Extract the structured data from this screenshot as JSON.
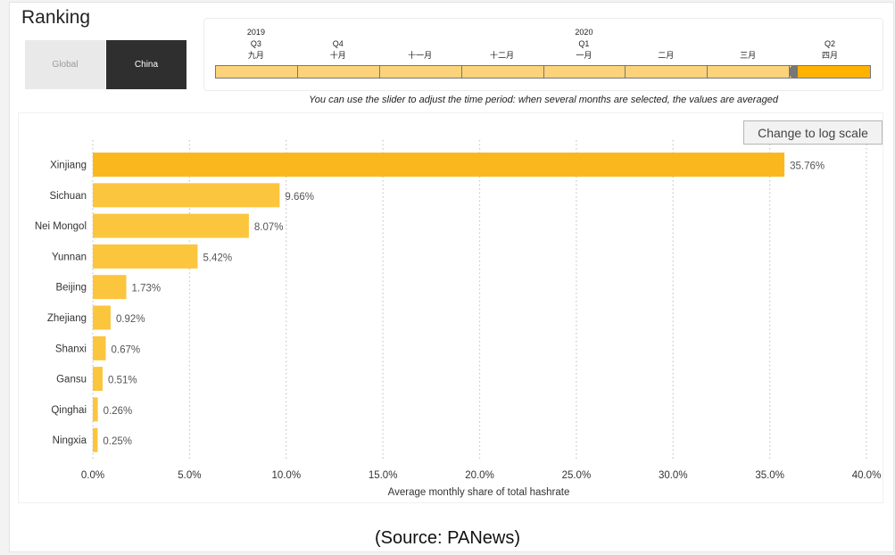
{
  "panel": {
    "title": "Ranking",
    "toggle_global": "Global",
    "toggle_china": "China"
  },
  "slider": {
    "labels": [
      {
        "year": "2019",
        "quarter": "Q3",
        "month": "九月"
      },
      {
        "year": "",
        "quarter": "Q4",
        "month": "十月"
      },
      {
        "year": "",
        "quarter": "",
        "month": "十一月"
      },
      {
        "year": "",
        "quarter": "",
        "month": "十二月"
      },
      {
        "year": "2020",
        "quarter": "Q1",
        "month": "一月"
      },
      {
        "year": "",
        "quarter": "",
        "month": "二月"
      },
      {
        "year": "",
        "quarter": "",
        "month": "三月"
      },
      {
        "year": "",
        "quarter": "Q2",
        "month": "四月"
      }
    ],
    "selected_index": 7,
    "hint": "You can use the slider to adjust the time period: when several months are selected, the values are averaged"
  },
  "log_button": "Change to log scale",
  "source": "(Source: PANews)",
  "colors": {
    "bar_top": "#fbb81e",
    "bar": "#fcc53e",
    "slider_fill": "#fcd37a",
    "slider_selected": "#ffb300"
  },
  "chart_data": {
    "type": "bar",
    "orientation": "horizontal",
    "title": "",
    "xlabel": "Average monthly share of total hashrate",
    "ylabel": "",
    "categories": [
      "Xinjiang",
      "Sichuan",
      "Nei Mongol",
      "Yunnan",
      "Beijing",
      "Zhejiang",
      "Shanxi",
      "Gansu",
      "Qinghai",
      "Ningxia"
    ],
    "values": [
      35.76,
      9.66,
      8.07,
      5.42,
      1.73,
      0.92,
      0.67,
      0.51,
      0.26,
      0.25
    ],
    "value_labels": [
      "35.76%",
      "9.66%",
      "8.07%",
      "5.42%",
      "1.73%",
      "0.92%",
      "0.67%",
      "0.51%",
      "0.26%",
      "0.25%"
    ],
    "xlim": [
      0,
      40
    ],
    "xticks": [
      0,
      5,
      10,
      15,
      20,
      25,
      30,
      35,
      40
    ],
    "xtick_labels": [
      "0.0%",
      "5.0%",
      "10.0%",
      "15.0%",
      "20.0%",
      "25.0%",
      "30.0%",
      "35.0%",
      "40.0%"
    ],
    "grid": true
  }
}
